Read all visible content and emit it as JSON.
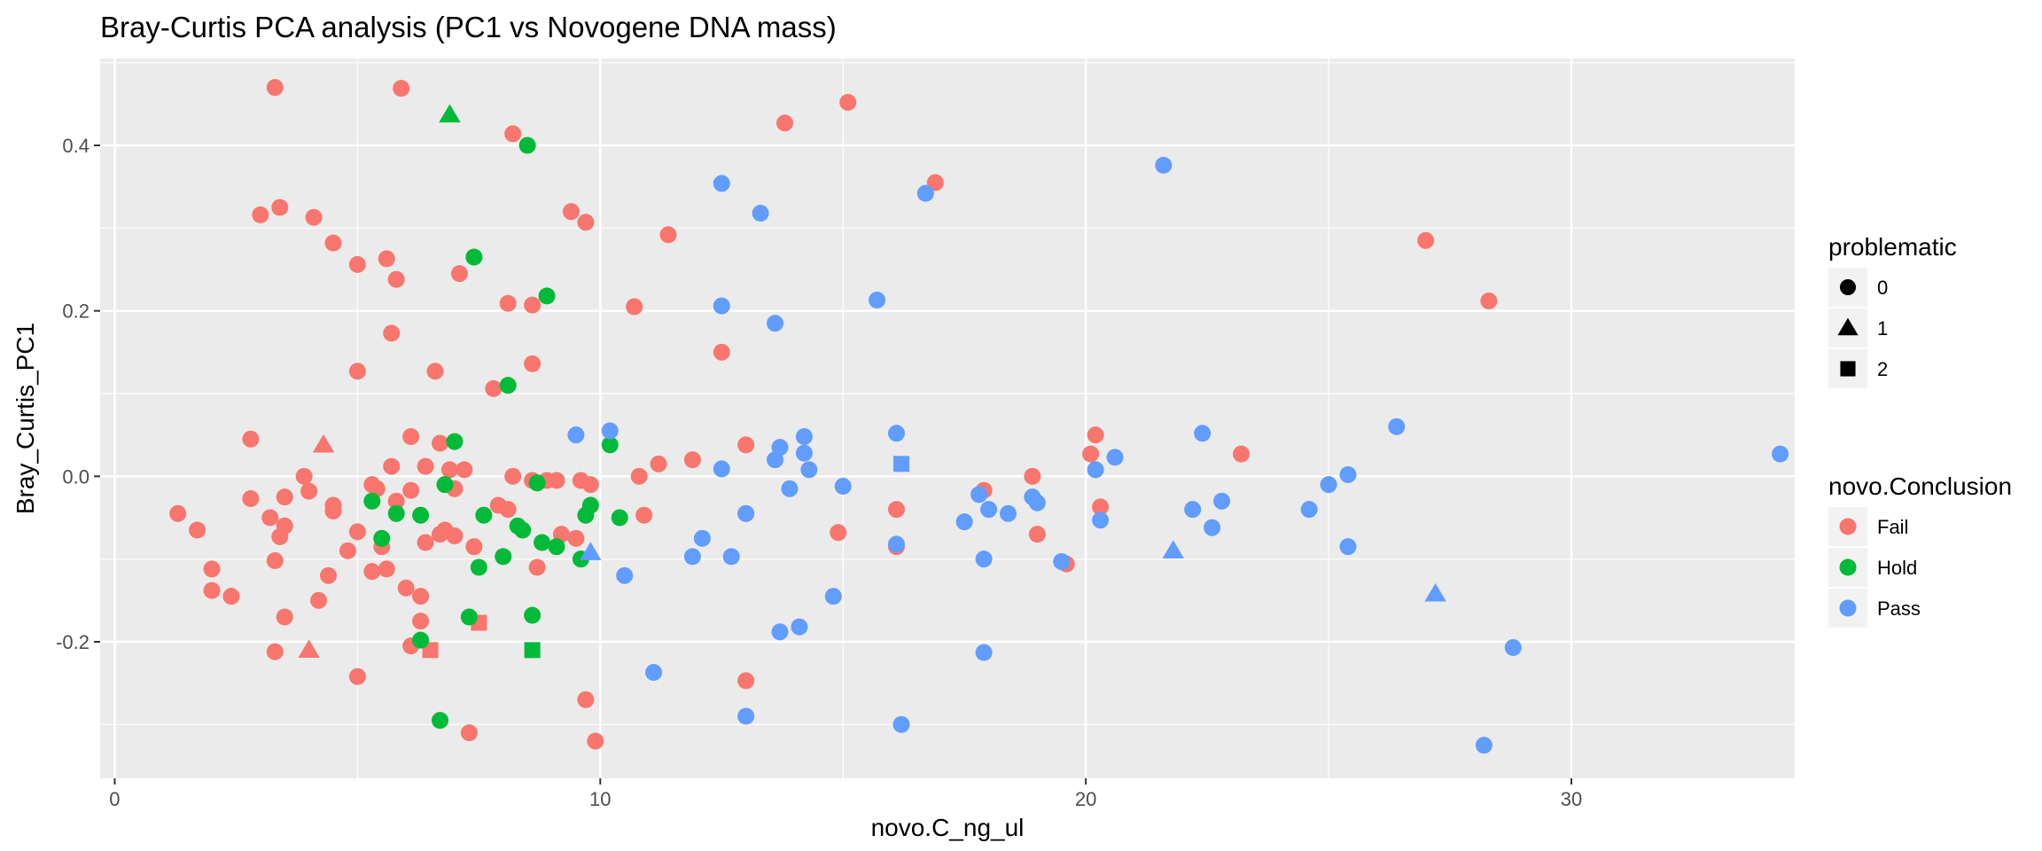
{
  "chart_data": {
    "type": "scatter",
    "title": "Bray-Curtis PCA analysis (PC1 vs Novogene DNA mass)",
    "xlabel": "novo.C_ng_ul",
    "ylabel": "Bray_Curtis_PC1",
    "xlim": [
      -0.3,
      34.6
    ],
    "ylim": [
      -0.365,
      0.505
    ],
    "x_ticks": [
      0,
      10,
      20,
      30
    ],
    "x_tick_labels": [
      "0",
      "10",
      "20",
      "30"
    ],
    "y_ticks": [
      0.4,
      0.2,
      0.0,
      -0.2
    ],
    "y_tick_labels": [
      "0.4",
      "0.2",
      "0.0",
      "-0.2"
    ],
    "grid": true,
    "legend_position": "right",
    "colors": {
      "Fail": "#F8766D",
      "Hold": "#00BA38",
      "Pass": "#619CFF",
      "panel": "#EBEBEB",
      "grid": "#FFFFFF",
      "legend_key": "#F2F2F2"
    },
    "legends": [
      {
        "title": "problematic",
        "type": "shape",
        "entries": [
          {
            "label": "0",
            "shape": "circle"
          },
          {
            "label": "1",
            "shape": "triangle"
          },
          {
            "label": "2",
            "shape": "square"
          }
        ]
      },
      {
        "title": "novo.Conclusion",
        "type": "color",
        "entries": [
          {
            "label": "Fail",
            "color": "#F8766D"
          },
          {
            "label": "Hold",
            "color": "#00BA38"
          },
          {
            "label": "Pass",
            "color": "#619CFF"
          }
        ]
      }
    ],
    "shape_map": {
      "0": "circle",
      "1": "triangle",
      "2": "square"
    },
    "series": [
      {
        "name": "Fail",
        "color": "#F8766D",
        "points": [
          [
            1.3,
            -0.045,
            0
          ],
          [
            1.7,
            -0.065,
            0
          ],
          [
            2.0,
            -0.112,
            0
          ],
          [
            2.0,
            -0.138,
            0
          ],
          [
            2.4,
            -0.145,
            0
          ],
          [
            2.8,
            0.045,
            0
          ],
          [
            2.8,
            -0.027,
            0
          ],
          [
            3.0,
            0.316,
            0
          ],
          [
            3.2,
            -0.05,
            0
          ],
          [
            3.3,
            -0.102,
            0
          ],
          [
            3.3,
            -0.212,
            0
          ],
          [
            3.3,
            0.47,
            0
          ],
          [
            3.4,
            -0.073,
            0
          ],
          [
            3.4,
            0.325,
            0
          ],
          [
            3.5,
            -0.06,
            0
          ],
          [
            3.5,
            -0.025,
            0
          ],
          [
            3.5,
            -0.17,
            0
          ],
          [
            3.9,
            0.0,
            0
          ],
          [
            4.0,
            -0.018,
            0
          ],
          [
            4.0,
            -0.21,
            1
          ],
          [
            4.1,
            0.313,
            0
          ],
          [
            4.2,
            -0.15,
            0
          ],
          [
            4.3,
            0.038,
            1
          ],
          [
            4.4,
            -0.12,
            0
          ],
          [
            4.5,
            0.282,
            0
          ],
          [
            4.5,
            -0.035,
            0
          ],
          [
            4.5,
            -0.042,
            0
          ],
          [
            4.8,
            -0.09,
            0
          ],
          [
            5.0,
            0.256,
            0
          ],
          [
            5.0,
            0.127,
            0
          ],
          [
            5.0,
            -0.067,
            0
          ],
          [
            5.0,
            -0.242,
            0
          ],
          [
            5.3,
            -0.01,
            0
          ],
          [
            5.3,
            -0.115,
            0
          ],
          [
            5.4,
            -0.015,
            0
          ],
          [
            5.5,
            -0.085,
            0
          ],
          [
            5.6,
            -0.112,
            0
          ],
          [
            5.6,
            0.263,
            0
          ],
          [
            5.7,
            0.173,
            0
          ],
          [
            5.7,
            0.012,
            0
          ],
          [
            5.8,
            0.238,
            0
          ],
          [
            5.8,
            -0.03,
            0
          ],
          [
            5.9,
            0.469,
            0
          ],
          [
            6.0,
            -0.135,
            0
          ],
          [
            6.1,
            0.048,
            0
          ],
          [
            6.1,
            -0.017,
            0
          ],
          [
            6.1,
            -0.205,
            0
          ],
          [
            6.3,
            -0.145,
            0
          ],
          [
            6.3,
            -0.175,
            0
          ],
          [
            6.4,
            0.012,
            0
          ],
          [
            6.4,
            -0.08,
            0
          ],
          [
            6.5,
            -0.21,
            2
          ],
          [
            6.6,
            0.127,
            0
          ],
          [
            6.7,
            0.04,
            0
          ],
          [
            6.7,
            -0.07,
            0
          ],
          [
            6.8,
            -0.065,
            0
          ],
          [
            6.9,
            0.008,
            0
          ],
          [
            7.0,
            -0.015,
            0
          ],
          [
            7.0,
            -0.072,
            0
          ],
          [
            7.1,
            0.245,
            0
          ],
          [
            7.2,
            0.008,
            0
          ],
          [
            7.3,
            -0.31,
            0
          ],
          [
            7.4,
            -0.085,
            0
          ],
          [
            7.5,
            -0.177,
            2
          ],
          [
            7.8,
            0.106,
            0
          ],
          [
            7.9,
            -0.035,
            0
          ],
          [
            8.1,
            -0.04,
            0
          ],
          [
            8.1,
            0.209,
            0
          ],
          [
            8.2,
            0.414,
            0
          ],
          [
            8.2,
            0.0,
            0
          ],
          [
            8.6,
            0.136,
            0
          ],
          [
            8.6,
            0.207,
            0
          ],
          [
            8.6,
            -0.005,
            0
          ],
          [
            8.7,
            -0.11,
            0
          ],
          [
            8.9,
            -0.005,
            0
          ],
          [
            9.1,
            -0.005,
            0
          ],
          [
            9.2,
            -0.07,
            0
          ],
          [
            9.4,
            0.32,
            0
          ],
          [
            9.5,
            -0.075,
            0
          ],
          [
            9.6,
            -0.005,
            0
          ],
          [
            9.7,
            0.307,
            0
          ],
          [
            9.7,
            -0.27,
            0
          ],
          [
            9.8,
            -0.01,
            0
          ],
          [
            9.9,
            -0.32,
            0
          ],
          [
            10.7,
            0.205,
            0
          ],
          [
            10.8,
            0.0,
            0
          ],
          [
            10.9,
            -0.047,
            0
          ],
          [
            11.2,
            0.015,
            0
          ],
          [
            11.4,
            0.292,
            0
          ],
          [
            11.9,
            0.02,
            0
          ],
          [
            12.5,
            0.15,
            0
          ],
          [
            13.0,
            0.038,
            0
          ],
          [
            13.0,
            -0.045,
            0
          ],
          [
            13.0,
            -0.247,
            0
          ],
          [
            13.8,
            0.427,
            0
          ],
          [
            14.9,
            -0.068,
            0
          ],
          [
            15.1,
            0.452,
            0
          ],
          [
            16.1,
            -0.04,
            0
          ],
          [
            16.1,
            -0.085,
            0
          ],
          [
            16.9,
            0.355,
            0
          ],
          [
            17.9,
            -0.017,
            0
          ],
          [
            18.9,
            0.0,
            0
          ],
          [
            19.0,
            -0.07,
            0
          ],
          [
            19.6,
            -0.106,
            0
          ],
          [
            20.1,
            0.027,
            0
          ],
          [
            20.2,
            0.05,
            0
          ],
          [
            20.3,
            -0.037,
            0
          ],
          [
            23.2,
            0.027,
            0
          ],
          [
            27.0,
            0.285,
            0
          ],
          [
            28.3,
            0.212,
            0
          ]
        ]
      },
      {
        "name": "Hold",
        "color": "#00BA38",
        "points": [
          [
            5.3,
            -0.03,
            0
          ],
          [
            5.5,
            -0.075,
            0
          ],
          [
            5.8,
            -0.045,
            0
          ],
          [
            6.3,
            -0.198,
            0
          ],
          [
            6.3,
            -0.047,
            0
          ],
          [
            6.7,
            -0.295,
            0
          ],
          [
            6.8,
            -0.01,
            0
          ],
          [
            6.9,
            0.437,
            1
          ],
          [
            7.0,
            0.042,
            0
          ],
          [
            7.3,
            -0.17,
            0
          ],
          [
            7.4,
            0.265,
            0
          ],
          [
            7.5,
            -0.11,
            0
          ],
          [
            7.6,
            -0.047,
            0
          ],
          [
            8.0,
            -0.097,
            0
          ],
          [
            8.1,
            0.11,
            0
          ],
          [
            8.3,
            -0.06,
            0
          ],
          [
            8.4,
            -0.065,
            0
          ],
          [
            8.5,
            0.4,
            0
          ],
          [
            8.6,
            -0.168,
            0
          ],
          [
            8.6,
            -0.21,
            2
          ],
          [
            8.7,
            -0.008,
            0
          ],
          [
            8.8,
            -0.08,
            0
          ],
          [
            8.9,
            0.218,
            0
          ],
          [
            9.1,
            -0.085,
            0
          ],
          [
            9.6,
            -0.1,
            0
          ],
          [
            9.7,
            -0.047,
            0
          ],
          [
            9.8,
            -0.035,
            0
          ],
          [
            10.2,
            0.038,
            0
          ],
          [
            10.4,
            -0.05,
            0
          ]
        ]
      },
      {
        "name": "Pass",
        "color": "#619CFF",
        "points": [
          [
            9.5,
            0.05,
            0
          ],
          [
            9.8,
            -0.092,
            1
          ],
          [
            10.2,
            0.055,
            0
          ],
          [
            10.5,
            -0.12,
            0
          ],
          [
            11.1,
            -0.237,
            0
          ],
          [
            11.9,
            -0.097,
            0
          ],
          [
            12.1,
            -0.075,
            0
          ],
          [
            12.5,
            0.354,
            0
          ],
          [
            12.5,
            0.206,
            0
          ],
          [
            12.5,
            0.009,
            0
          ],
          [
            12.7,
            -0.097,
            0
          ],
          [
            13.0,
            -0.045,
            0
          ],
          [
            13.0,
            -0.29,
            0
          ],
          [
            13.3,
            0.318,
            0
          ],
          [
            13.6,
            0.185,
            0
          ],
          [
            13.6,
            0.02,
            0
          ],
          [
            13.7,
            0.035,
            0
          ],
          [
            13.7,
            -0.188,
            0
          ],
          [
            13.9,
            -0.015,
            0
          ],
          [
            14.1,
            -0.182,
            0
          ],
          [
            14.2,
            0.048,
            0
          ],
          [
            14.2,
            0.028,
            0
          ],
          [
            14.3,
            0.008,
            0
          ],
          [
            14.8,
            -0.145,
            0
          ],
          [
            15.0,
            -0.012,
            0
          ],
          [
            15.7,
            0.213,
            0
          ],
          [
            16.1,
            0.052,
            0
          ],
          [
            16.1,
            -0.082,
            0
          ],
          [
            16.2,
            0.015,
            2
          ],
          [
            16.2,
            -0.3,
            0
          ],
          [
            16.7,
            0.342,
            0
          ],
          [
            17.5,
            -0.055,
            0
          ],
          [
            17.8,
            -0.022,
            0
          ],
          [
            17.9,
            -0.1,
            0
          ],
          [
            17.9,
            -0.213,
            0
          ],
          [
            18.0,
            -0.04,
            0
          ],
          [
            18.4,
            -0.045,
            0
          ],
          [
            18.9,
            -0.025,
            0
          ],
          [
            19.0,
            -0.032,
            0
          ],
          [
            19.5,
            -0.103,
            0
          ],
          [
            20.2,
            0.008,
            0
          ],
          [
            20.3,
            -0.053,
            0
          ],
          [
            20.6,
            0.023,
            0
          ],
          [
            21.6,
            0.376,
            0
          ],
          [
            21.8,
            -0.09,
            1
          ],
          [
            22.2,
            -0.04,
            0
          ],
          [
            22.4,
            0.052,
            0
          ],
          [
            22.6,
            -0.062,
            0
          ],
          [
            22.8,
            -0.03,
            0
          ],
          [
            24.6,
            -0.04,
            0
          ],
          [
            25.0,
            -0.01,
            0
          ],
          [
            25.4,
            0.002,
            0
          ],
          [
            25.4,
            -0.085,
            0
          ],
          [
            26.4,
            0.06,
            0
          ],
          [
            27.2,
            -0.142,
            1
          ],
          [
            28.2,
            -0.325,
            0
          ],
          [
            28.8,
            -0.207,
            0
          ],
          [
            34.3,
            0.027,
            0
          ]
        ]
      }
    ]
  }
}
